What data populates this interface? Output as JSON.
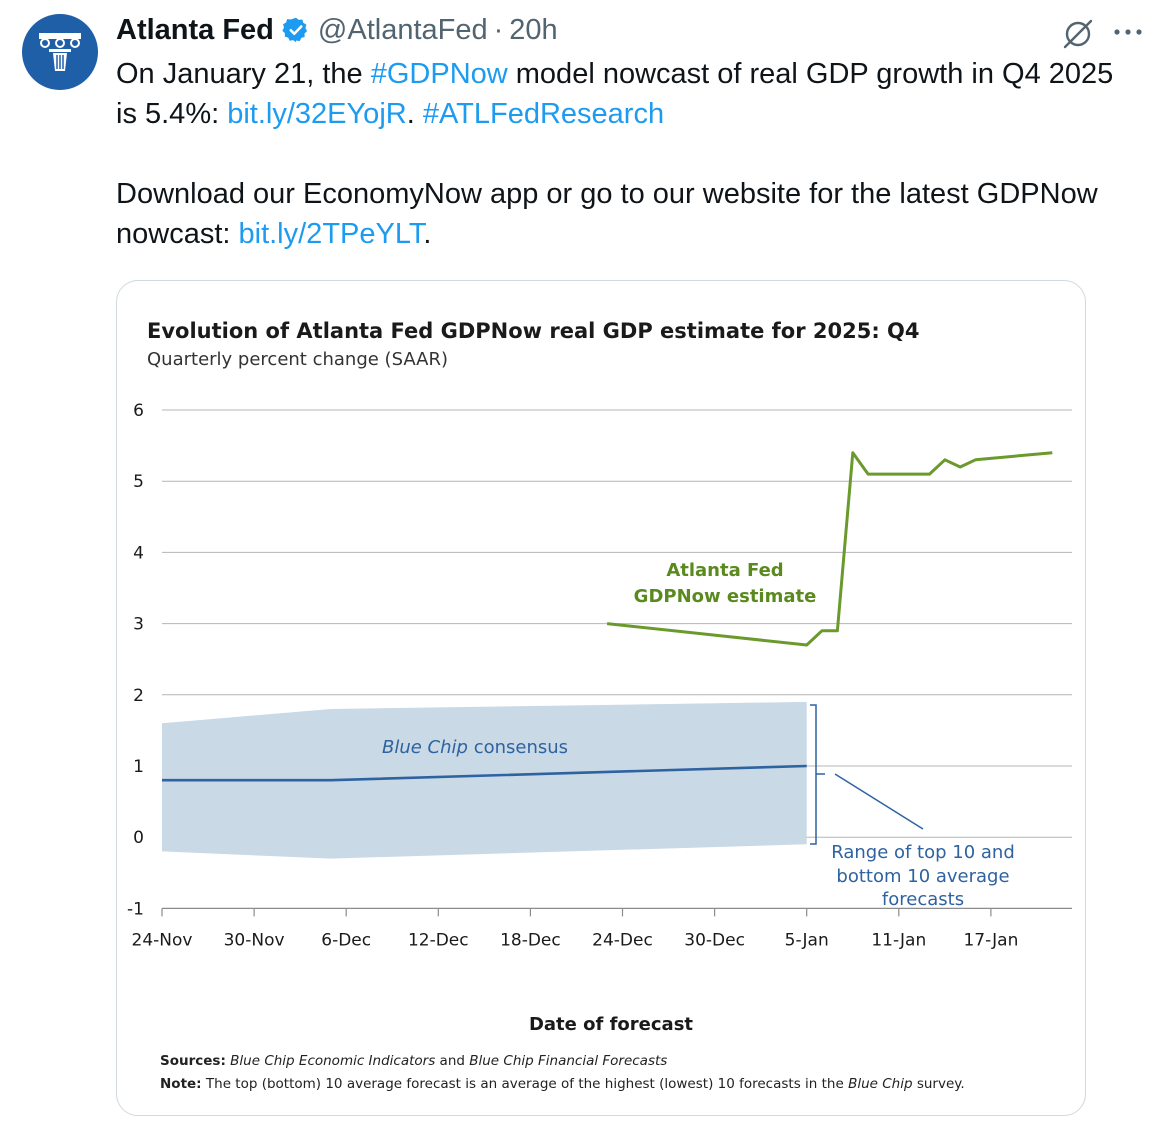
{
  "account": {
    "name": "Atlanta Fed",
    "handle": "@AtlantaFed",
    "separator": "·",
    "time": "20h"
  },
  "icons": {
    "verified": "verified-badge-icon",
    "grok": "grok-icon",
    "more": "more-options-icon",
    "avatar": "atlanta-fed-logo"
  },
  "colors": {
    "link": "#1d9bf0",
    "gdpnow_line": "#6a9a2b",
    "bluechip_line": "#2e62a1",
    "bluechip_band": "#c9d9e6"
  },
  "tweet": {
    "p1_a": "On January 21, the ",
    "p1_hashtag1": "#GDPNow",
    "p1_b": " model nowcast of real GDP growth in Q4 2025 is 5.4%: ",
    "p1_link": "bit.ly/32EYojR",
    "p1_c": ". ",
    "p1_hashtag2": "#ATLFedResearch",
    "p2_a": "Download our EconomyNow app or go to our website for the latest GDPNow nowcast: ",
    "p2_link": "bit.ly/2TPeYLT",
    "p2_b": "."
  },
  "chart_data": {
    "type": "line",
    "title": "Evolution of Atlanta Fed GDPNow real GDP estimate for 2025: Q4",
    "subtitle": "Quarterly percent change (SAAR)",
    "xlabel": "Date of forecast",
    "ylabel": "",
    "ylim": [
      -1,
      6
    ],
    "y_ticks": [
      "6",
      "5",
      "4",
      "3",
      "2",
      "1",
      "0",
      "-1"
    ],
    "x_ticks": [
      "24-Nov",
      "30-Nov",
      "6-Dec",
      "12-Dec",
      "18-Dec",
      "24-Dec",
      "30-Dec",
      "5-Jan",
      "11-Jan",
      "17-Jan"
    ],
    "x_range": [
      "2025-11-24",
      "2026-01-22"
    ],
    "grid": "horizontal",
    "series": [
      {
        "name": "Atlanta Fed GDPNow estimate",
        "x": [
          "2025-12-23",
          "2026-01-05",
          "2026-01-06",
          "2026-01-07",
          "2026-01-08",
          "2026-01-09",
          "2026-01-13",
          "2026-01-14",
          "2026-01-15",
          "2026-01-16",
          "2026-01-21"
        ],
        "values": [
          3.0,
          2.7,
          2.9,
          2.9,
          5.4,
          5.1,
          5.1,
          5.3,
          5.2,
          5.3,
          5.4
        ]
      },
      {
        "name": "Blue Chip consensus",
        "x": [
          "2025-11-24",
          "2025-12-05",
          "2026-01-05"
        ],
        "values": [
          0.8,
          0.8,
          1.0
        ]
      }
    ],
    "range_band": {
      "label": "Range of top 10 and bottom 10 average forecasts",
      "x": [
        "2025-11-24",
        "2025-12-05",
        "2026-01-05"
      ],
      "upper": [
        1.6,
        1.8,
        1.9
      ],
      "lower": [
        -0.2,
        -0.3,
        -0.1
      ]
    },
    "annotations": {
      "gdpnow_line1": "Atlanta Fed",
      "gdpnow_line2": "GDPNow estimate",
      "bluechip_it": "Blue Chip",
      "bluechip_rest": " consensus",
      "range_line1": "Range of top 10 and",
      "range_line2": "bottom 10 average",
      "range_line3": "forecasts"
    },
    "sources_label": "Sources:",
    "sources_it1": "Blue Chip Economic Indicators",
    "sources_and": " and ",
    "sources_it2": "Blue Chip Financial Forecasts",
    "note_label": "Note:",
    "note_text_a": " The top (bottom) 10 average forecast is an average of the highest (lowest) 10 forecasts in the ",
    "note_text_it": "Blue Chip",
    "note_text_b": " survey."
  }
}
